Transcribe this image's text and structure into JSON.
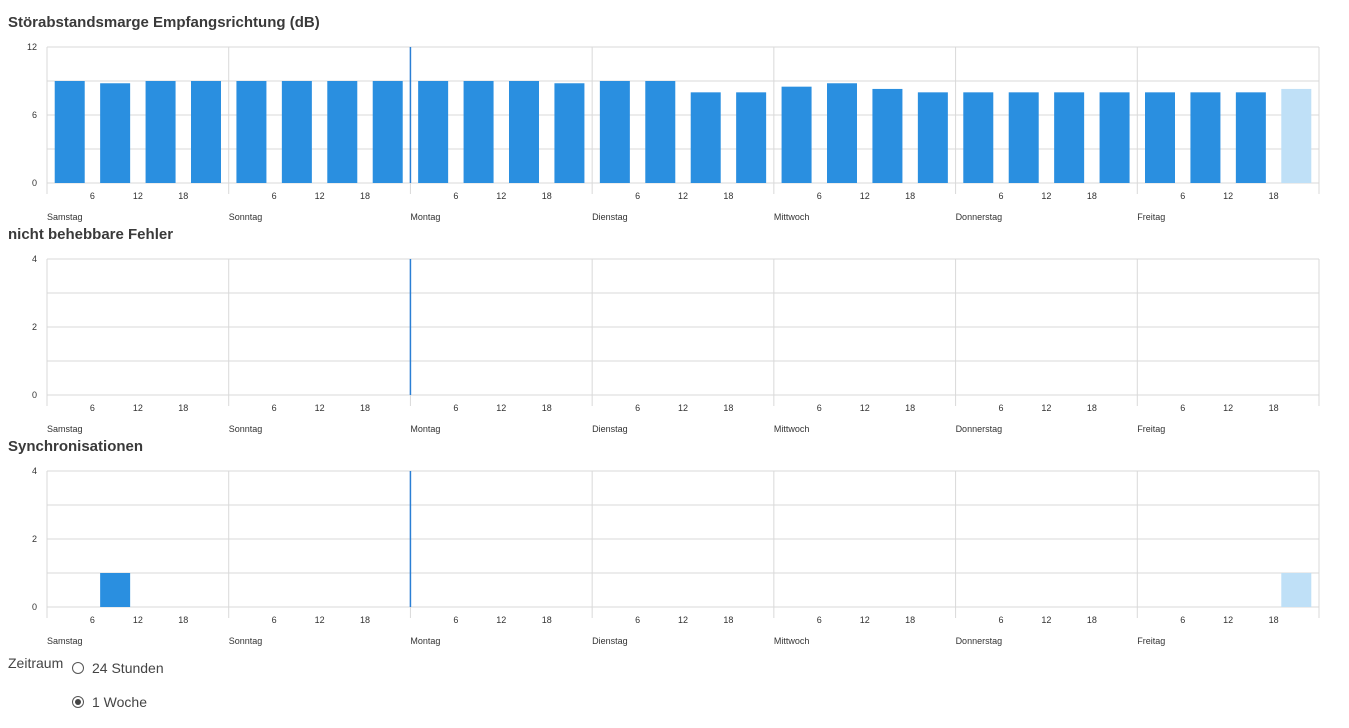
{
  "colors": {
    "bar": "#2a8fe0",
    "bar_current": "#bfe0f7",
    "grid": "#d9d9d9",
    "now_line": "#2a7fd4"
  },
  "chart_data": [
    {
      "type": "bar",
      "title": "Störabstandsmarge Empfangsrichtung (dB)",
      "ylim": [
        0,
        12
      ],
      "yticks": [
        0,
        6,
        12
      ],
      "hour_ticks": [
        "6",
        "12",
        "18"
      ],
      "day_labels": [
        "Samstag",
        "Sonntag",
        "Montag",
        "Dienstag",
        "Mittwoch",
        "Donnerstag",
        "Freitag"
      ],
      "values": [
        9,
        8.8,
        9,
        9,
        9,
        9,
        9,
        9,
        9,
        9,
        9,
        8.8,
        9,
        9,
        8,
        8,
        8.5,
        8.8,
        8.3,
        8,
        8,
        8,
        8,
        8,
        8,
        8,
        8,
        8.3
      ],
      "current_index": 27,
      "now_marker_day": 2
    },
    {
      "type": "bar",
      "title": "nicht behebbare Fehler",
      "ylim": [
        0,
        4
      ],
      "yticks": [
        0,
        2,
        4
      ],
      "hour_ticks": [
        "6",
        "12",
        "18"
      ],
      "day_labels": [
        "Samstag",
        "Sonntag",
        "Montag",
        "Dienstag",
        "Mittwoch",
        "Donnerstag",
        "Freitag"
      ],
      "values": [
        0,
        0,
        0,
        0,
        0,
        0,
        0,
        0,
        0,
        0,
        0,
        0,
        0,
        0,
        0,
        0,
        0,
        0,
        0,
        0,
        0,
        0,
        0,
        0,
        0,
        0,
        0,
        0
      ],
      "current_index": 27,
      "now_marker_day": 2
    },
    {
      "type": "bar",
      "title": "Synchronisationen",
      "ylim": [
        0,
        4
      ],
      "yticks": [
        0,
        2,
        4
      ],
      "hour_ticks": [
        "6",
        "12",
        "18"
      ],
      "day_labels": [
        "Samstag",
        "Sonntag",
        "Montag",
        "Dienstag",
        "Mittwoch",
        "Donnerstag",
        "Freitag"
      ],
      "values": [
        0,
        1,
        0,
        0,
        0,
        0,
        0,
        0,
        0,
        0,
        0,
        0,
        0,
        0,
        0,
        0,
        0,
        0,
        0,
        0,
        0,
        0,
        0,
        0,
        0,
        0,
        0,
        1
      ],
      "current_index": 27,
      "now_marker_day": 2
    }
  ],
  "zeitraum": {
    "label": "Zeitraum",
    "options": [
      {
        "label": "24 Stunden",
        "selected": false
      },
      {
        "label": "1 Woche",
        "selected": true
      }
    ]
  }
}
